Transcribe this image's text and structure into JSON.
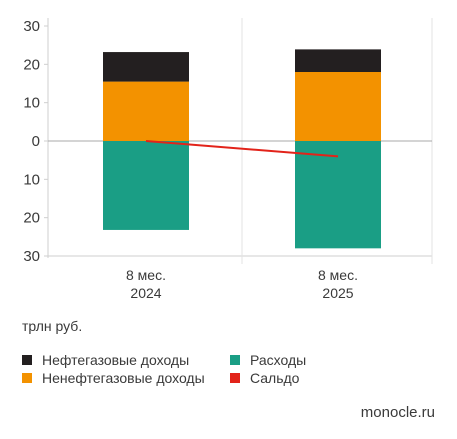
{
  "chart_data": {
    "type": "bar",
    "stacked": true,
    "categories": [
      {
        "line1": "8 мес.",
        "line2": "2024"
      },
      {
        "line1": "8 мес.",
        "line2": "2025"
      }
    ],
    "y_ticks": [
      "30",
      "20",
      "10",
      "0",
      "10",
      "20",
      "30"
    ],
    "ylim": [
      -30,
      30
    ],
    "unit_label": "трлн руб.",
    "series": [
      {
        "name": "Ненефтегазовые доходы",
        "color": "#f39200",
        "values": [
          15.5,
          18.0
        ]
      },
      {
        "name": "Нефтегазовые доходы",
        "color": "#231f20",
        "values": [
          7.7,
          5.9
        ]
      },
      {
        "name": "Расходы",
        "color": "#1a9e85",
        "values": [
          -23.2,
          -28.0
        ]
      },
      {
        "name": "Сальдо",
        "type": "line",
        "color": "#e2231a",
        "values": [
          0.0,
          -4.0
        ]
      }
    ],
    "grid": "vertical-dividers"
  },
  "legend": [
    {
      "label": "Нефтегазовые доходы",
      "color": "#231f20"
    },
    {
      "label": "Ненефтегазовые доходы",
      "color": "#f39200"
    },
    {
      "label": "Расходы",
      "color": "#1a9e85"
    },
    {
      "label": "Сальдо",
      "color": "#e2231a"
    }
  ],
  "credit": "monocle.ru"
}
